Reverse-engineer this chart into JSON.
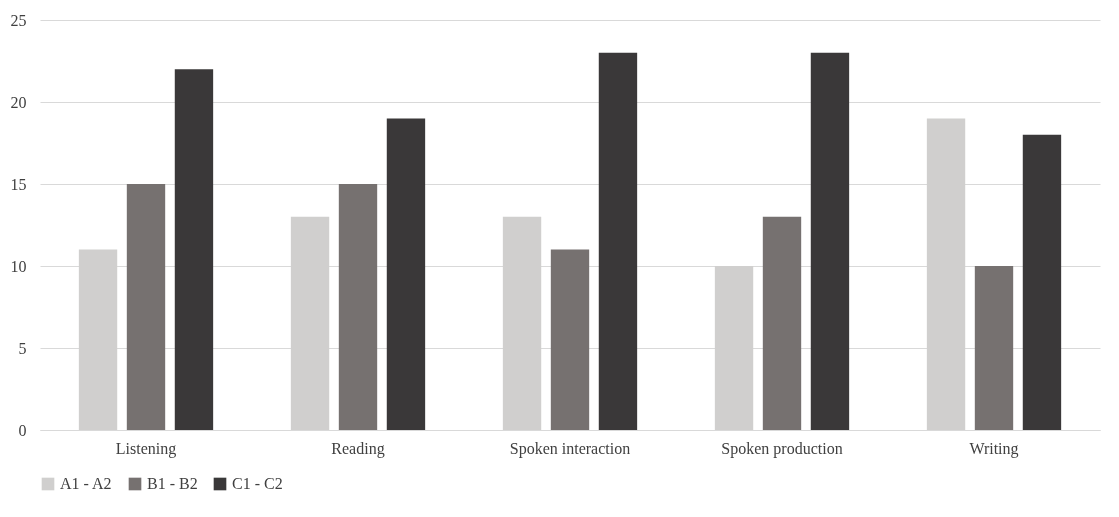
{
  "chart_data": {
    "type": "bar",
    "categories": [
      "Listening",
      "Reading",
      "Spoken interaction",
      "Spoken production",
      "Writing"
    ],
    "series": [
      {
        "name": "A1 - A2",
        "color": "#d0cfce",
        "values": [
          11,
          13,
          13,
          10,
          19
        ]
      },
      {
        "name": "B1 - B2",
        "color": "#767170",
        "values": [
          15,
          15,
          11,
          13,
          10
        ]
      },
      {
        "name": "C1 - C2",
        "color": "#3a3839",
        "values": [
          22,
          19,
          23,
          23,
          18
        ]
      }
    ],
    "ylim": [
      0,
      25
    ],
    "yticks": [
      0,
      5,
      10,
      15,
      20,
      25
    ],
    "grid": "y",
    "legend": "bottom"
  }
}
